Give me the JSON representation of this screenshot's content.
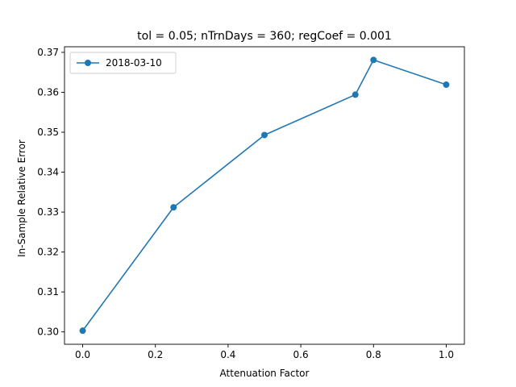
{
  "chart_data": {
    "type": "line",
    "title": "tol = 0.05; nTrnDays = 360; regCoef = 0.001",
    "xlabel": "Attenuation Factor",
    "ylabel": "In-Sample Relative Error",
    "xlim": [
      -0.05,
      1.05
    ],
    "ylim": [
      0.2969,
      0.3714
    ],
    "xticks": [
      0.0,
      0.2,
      0.4,
      0.6,
      0.8,
      1.0
    ],
    "xtick_labels": [
      "0.0",
      "0.2",
      "0.4",
      "0.6",
      "0.8",
      "1.0"
    ],
    "yticks": [
      0.3,
      0.31,
      0.32,
      0.33,
      0.34,
      0.35,
      0.36,
      0.37
    ],
    "ytick_labels": [
      "0.30",
      "0.31",
      "0.32",
      "0.33",
      "0.34",
      "0.35",
      "0.36",
      "0.37"
    ],
    "grid": false,
    "legend_position": "top-left",
    "series": [
      {
        "name": "2018-03-10",
        "color": "#1f77b4",
        "marker": "circle",
        "x": [
          0.0,
          0.25,
          0.5,
          0.75,
          0.8,
          1.0
        ],
        "y": [
          0.3003,
          0.3312,
          0.3493,
          0.3594,
          0.3681,
          0.3619
        ]
      }
    ]
  }
}
